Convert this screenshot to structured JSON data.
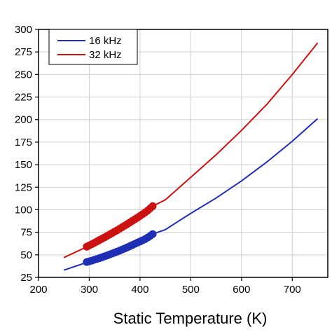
{
  "chart_data": {
    "type": "line",
    "title": "",
    "xlabel": "Static Temperature (K)",
    "ylabel": "",
    "xlim": [
      200,
      770
    ],
    "ylim": [
      25,
      300
    ],
    "xticks": [
      "200",
      "300",
      "400",
      "500",
      "600",
      "700"
    ],
    "xtick_values": [
      200,
      300,
      400,
      500,
      600,
      700
    ],
    "yticks": [
      "25",
      "50",
      "75",
      "100",
      "125",
      "150",
      "175",
      "200",
      "225",
      "250",
      "275",
      "300"
    ],
    "ytick_values": [
      25,
      50,
      75,
      100,
      125,
      150,
      175,
      200,
      225,
      250,
      275,
      300
    ],
    "grid": true,
    "legend_position": "top-left",
    "series": [
      {
        "name": "16 kHz",
        "color": "#1f2fb5",
        "x": [
          250,
          300,
          350,
          400,
          425,
          450,
          500,
          550,
          600,
          650,
          700,
          750
        ],
        "y": [
          33,
          42.5,
          53,
          64.5,
          73,
          78,
          96,
          113,
          132,
          153,
          176,
          201
        ],
        "markers_x": [
          295,
          300,
          305,
          310,
          315,
          320,
          325,
          330,
          335,
          340,
          345,
          350,
          355,
          360,
          365,
          370,
          375,
          380,
          385,
          390,
          395,
          400,
          405,
          410,
          415,
          420,
          425
        ],
        "markers_y": [
          42,
          42.8,
          43.6,
          44.5,
          45.4,
          46.3,
          47.3,
          48.3,
          49.3,
          50.3,
          51.4,
          52.5,
          53.6,
          54.7,
          55.9,
          57.1,
          58.3,
          59.6,
          60.9,
          62.2,
          63.5,
          64.8,
          66.1,
          67.4,
          69.2,
          71,
          73
        ]
      },
      {
        "name": "32 kHz",
        "color": "#cc1111",
        "x": [
          250,
          300,
          350,
          400,
          425,
          450,
          500,
          550,
          600,
          650,
          700,
          750
        ],
        "y": [
          47,
          60,
          75,
          91,
          104,
          111,
          136,
          161,
          188,
          217,
          250,
          285
        ],
        "markers_x": [
          295,
          300,
          305,
          310,
          315,
          320,
          325,
          330,
          335,
          340,
          345,
          350,
          355,
          360,
          365,
          370,
          375,
          380,
          385,
          390,
          395,
          400,
          405,
          410,
          415,
          420,
          425
        ],
        "markers_y": [
          59,
          60.4,
          61.8,
          63.3,
          64.8,
          66.3,
          67.8,
          69.3,
          70.9,
          72.5,
          74.1,
          75.7,
          77.3,
          79,
          80.7,
          82.4,
          84.1,
          85.9,
          87.7,
          89.5,
          91.3,
          93.1,
          95,
          97,
          99,
          101.5,
          104
        ]
      }
    ]
  }
}
